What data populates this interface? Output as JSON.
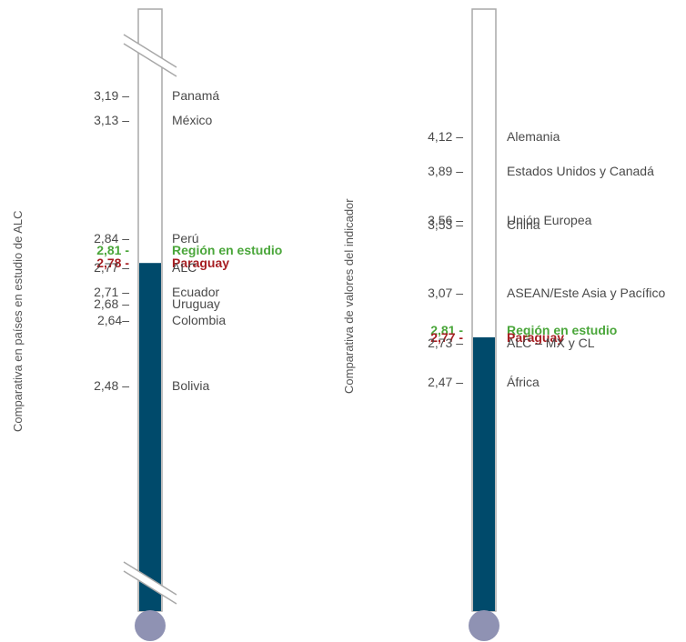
{
  "chart_data": [
    {
      "type": "thermometer",
      "axis_title": "Comparativa en países en estudio de ALC",
      "fill_value": 2.78,
      "axis_break_top": true,
      "axis_break_bottom": true,
      "points": [
        {
          "value": 3.19,
          "value_label": "3,19 –",
          "name": "Panamá"
        },
        {
          "value": 3.13,
          "value_label": "3,13 –",
          "name": "México"
        },
        {
          "value": 2.84,
          "value_label": "2,84 –",
          "name": "Perú"
        },
        {
          "value": 2.81,
          "value_label": "2,81 -",
          "name": "Región en estudio",
          "highlight": "green"
        },
        {
          "value": 2.78,
          "value_label": "2,78 -",
          "name": "Paraguay",
          "highlight": "red"
        },
        {
          "value": 2.77,
          "value_label": "2,77 –",
          "name": "ALC"
        },
        {
          "value": 2.71,
          "value_label": "2,71 –",
          "name": "Ecuador"
        },
        {
          "value": 2.68,
          "value_label": "2,68 –",
          "name": "Uruguay"
        },
        {
          "value": 2.64,
          "value_label": "2,64–",
          "name": "Colombia"
        },
        {
          "value": 2.48,
          "value_label": "2,48 –",
          "name": "Bolivia"
        }
      ]
    },
    {
      "type": "thermometer",
      "axis_title": "Comparativa de valores del indicador",
      "fill_value": 2.77,
      "axis_break_top": false,
      "axis_break_bottom": false,
      "points": [
        {
          "value": 4.12,
          "value_label": "4,12 –",
          "name": "Alemania"
        },
        {
          "value": 3.89,
          "value_label": "3,89 –",
          "name": "Estados Unidos y Canadá"
        },
        {
          "value": 3.56,
          "value_label": "3,56 –",
          "name": "Unión Europea"
        },
        {
          "value": 3.53,
          "value_label": "3,53 –",
          "name": "China"
        },
        {
          "value": 3.07,
          "value_label": "3,07 –",
          "name": "ASEAN/Este Asia y Pacífico"
        },
        {
          "value": 2.81,
          "value_label": "2,81 -",
          "name": "Región en estudio",
          "highlight": "green"
        },
        {
          "value": 2.77,
          "value_label": "2,77 -",
          "name": "Paraguay",
          "highlight": "red"
        },
        {
          "value": 2.73,
          "value_label": "2,73 –",
          "name": "ALC – MX y CL"
        },
        {
          "value": 2.47,
          "value_label": "2,47 –",
          "name": "África"
        }
      ]
    }
  ],
  "colors": {
    "fill": "#004a6b",
    "tube_border": "#a8a8a8",
    "bulb": "#8f92b3",
    "green": "#4aa63a",
    "red": "#a61e22",
    "text": "#4a4a4a"
  }
}
